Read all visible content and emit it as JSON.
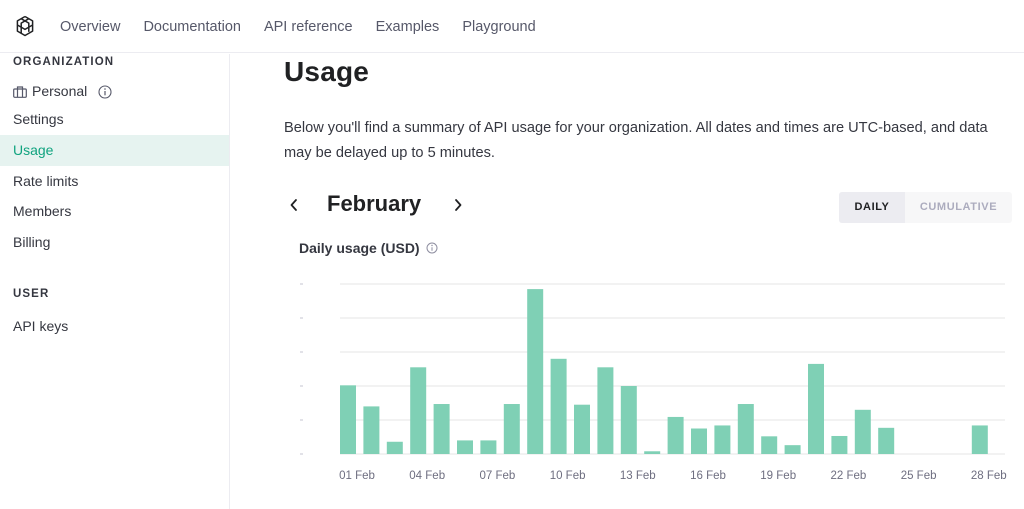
{
  "nav": {
    "links": [
      "Overview",
      "Documentation",
      "API reference",
      "Examples",
      "Playground"
    ]
  },
  "sidebar": {
    "org_heading": "ORGANIZATION",
    "org_name": "Personal",
    "items": [
      "Settings",
      "Usage",
      "Rate limits",
      "Members",
      "Billing"
    ],
    "active_item": "Usage",
    "user_heading": "USER",
    "user_items": [
      "API keys"
    ]
  },
  "main": {
    "title": "Usage",
    "summary": "Below you'll find a summary of API usage for your organization. All dates and times are UTC-based, and data may be delayed up to 5 minutes.",
    "month": "February",
    "toggle": {
      "daily": "DAILY",
      "cumulative": "CUMULATIVE",
      "selected": "daily"
    }
  },
  "colors": {
    "accent": "#10a37f",
    "bar": "#7fd0b5",
    "grid": "#e5e5e5"
  },
  "chart_data": {
    "type": "bar",
    "title": "Daily usage (USD)",
    "xlabel": "",
    "ylabel": "",
    "ylim": [
      0,
      5
    ],
    "grid": true,
    "tick_labels_x": [
      "01 Feb",
      "04 Feb",
      "07 Feb",
      "10 Feb",
      "13 Feb",
      "16 Feb",
      "19 Feb",
      "22 Feb",
      "25 Feb",
      "28 Feb"
    ],
    "categories": [
      "01 Feb",
      "02 Feb",
      "03 Feb",
      "04 Feb",
      "05 Feb",
      "06 Feb",
      "07 Feb",
      "08 Feb",
      "09 Feb",
      "10 Feb",
      "11 Feb",
      "12 Feb",
      "13 Feb",
      "14 Feb",
      "15 Feb",
      "16 Feb",
      "17 Feb",
      "18 Feb",
      "19 Feb",
      "20 Feb",
      "21 Feb",
      "22 Feb",
      "23 Feb",
      "24 Feb",
      "25 Feb",
      "26 Feb",
      "27 Feb",
      "28 Feb"
    ],
    "values": [
      2.02,
      1.4,
      0.36,
      2.55,
      1.47,
      0.4,
      0.4,
      1.47,
      4.85,
      2.8,
      1.45,
      2.55,
      2.0,
      0.08,
      1.09,
      0.75,
      0.84,
      1.47,
      0.52,
      0.26,
      2.65,
      0.53,
      1.3,
      0.77,
      0,
      0,
      0,
      0.84
    ]
  }
}
